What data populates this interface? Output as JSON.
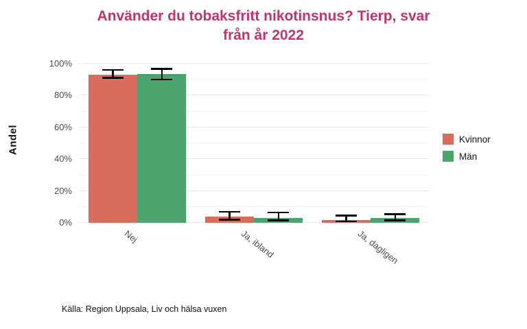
{
  "title": {
    "line1": "Använder du tobaksfritt nikotinsnus? Tierp, svar",
    "line2": "från år 2022"
  },
  "source": "Källa: Region Uppsala, Liv och hälsa vuxen",
  "chart_data": {
    "type": "bar",
    "title": "Använder du tobaksfritt nikotinsnus? Tierp, svar från år 2022",
    "xlabel": "",
    "ylabel": "Andel",
    "categories": [
      "Nej",
      "Ja, ibland",
      "Ja, dagligen"
    ],
    "series": [
      {
        "name": "Kvinnor",
        "color": "#d96c5c",
        "values": [
          93,
          4,
          2
        ],
        "error_low": [
          91,
          2,
          1
        ],
        "error_high": [
          96,
          7,
          4.5
        ]
      },
      {
        "name": "Män",
        "color": "#4ba46d",
        "values": [
          93.5,
          3,
          3
        ],
        "error_low": [
          90,
          1.5,
          1.5
        ],
        "error_high": [
          96.5,
          6.5,
          5.5
        ]
      }
    ],
    "yticks": [
      0,
      20,
      40,
      60,
      80,
      100
    ],
    "ytick_labels": [
      "0%",
      "20%",
      "40%",
      "60%",
      "80%",
      "100%"
    ],
    "yticks_minor": [
      10,
      30,
      50,
      70,
      90
    ],
    "ylim": [
      0,
      104
    ],
    "grid": true,
    "legend_position": "right",
    "colors": {
      "title": "#c5326e",
      "axis_text": "#4d4d4d",
      "grid_major": "#e8e8e8",
      "grid_minor": "#f4f4f4",
      "errorbar": "#000000"
    }
  }
}
